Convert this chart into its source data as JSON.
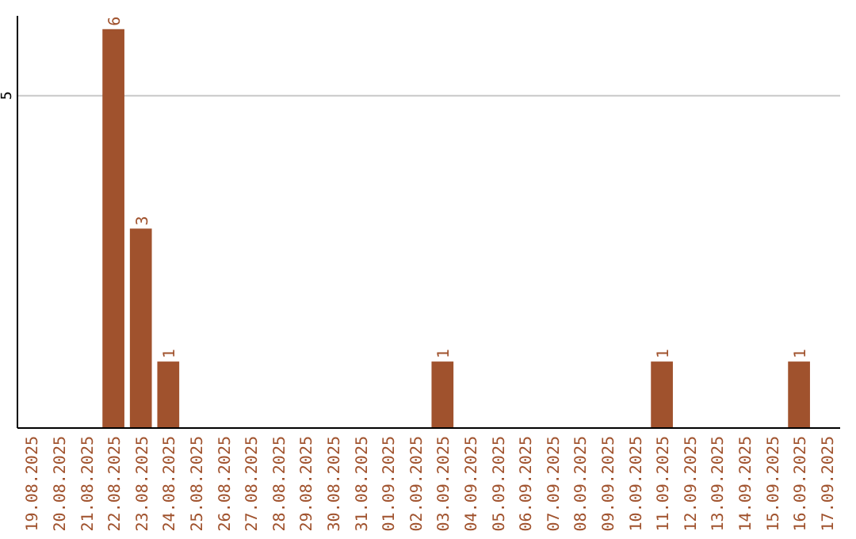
{
  "chart_data": {
    "type": "bar",
    "categories": [
      "19.08.2025",
      "20.08.2025",
      "21.08.2025",
      "22.08.2025",
      "23.08.2025",
      "24.08.2025",
      "25.08.2025",
      "26.08.2025",
      "27.08.2025",
      "28.08.2025",
      "29.08.2025",
      "30.08.2025",
      "31.08.2025",
      "01.09.2025",
      "02.09.2025",
      "03.09.2025",
      "04.09.2025",
      "05.09.2025",
      "06.09.2025",
      "07.09.2025",
      "08.09.2025",
      "09.09.2025",
      "10.09.2025",
      "11.09.2025",
      "12.09.2025",
      "13.09.2025",
      "14.09.2025",
      "15.09.2025",
      "16.09.2025",
      "17.09.2025"
    ],
    "values": [
      0,
      0,
      0,
      6,
      3,
      1,
      0,
      0,
      0,
      0,
      0,
      0,
      0,
      0,
      0,
      1,
      0,
      0,
      0,
      0,
      0,
      0,
      0,
      1,
      0,
      0,
      0,
      0,
      1,
      0
    ],
    "value_labels": [
      null,
      null,
      null,
      "6",
      "3",
      "1",
      null,
      null,
      null,
      null,
      null,
      null,
      null,
      null,
      null,
      "1",
      null,
      null,
      null,
      null,
      null,
      null,
      null,
      "1",
      null,
      null,
      null,
      null,
      "1",
      null
    ],
    "color": "#a0522d",
    "ylim": [
      0,
      6.2
    ],
    "yticks": [
      5
    ],
    "grid": "y"
  }
}
